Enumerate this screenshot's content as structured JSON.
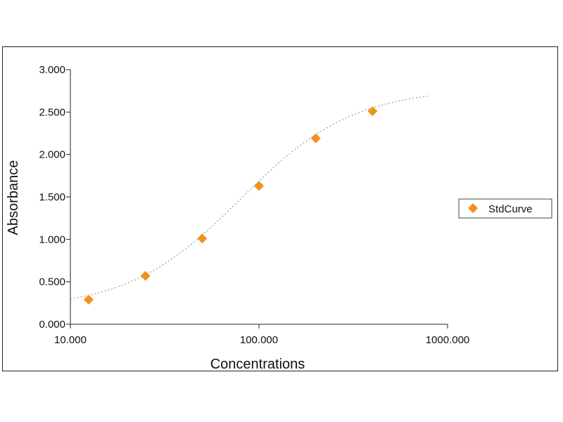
{
  "chart_data": {
    "type": "scatter",
    "xscale": "log",
    "xlabel": "Concentrations",
    "ylabel": "Absorbance",
    "xlim": [
      10,
      1000
    ],
    "ylim": [
      0,
      3
    ],
    "x_ticks": [
      {
        "value": 10,
        "label": "10.000"
      },
      {
        "value": 100,
        "label": "100.000"
      },
      {
        "value": 1000,
        "label": "1000.000"
      }
    ],
    "y_ticks": [
      {
        "value": 0,
        "label": "0.000"
      },
      {
        "value": 0.5,
        "label": "0.500"
      },
      {
        "value": 1,
        "label": "1.000"
      },
      {
        "value": 1.5,
        "label": "1.500"
      },
      {
        "value": 2,
        "label": "2.000"
      },
      {
        "value": 2.5,
        "label": "2.500"
      },
      {
        "value": 3,
        "label": "3.000"
      }
    ],
    "series": [
      {
        "name": "StdCurve",
        "color": "#f0921e",
        "marker": "diamond",
        "x": [
          12.5,
          25,
          50,
          100,
          200,
          400
        ],
        "y": [
          0.29,
          0.57,
          1.01,
          1.63,
          2.19,
          2.51
        ]
      }
    ],
    "fit_curve": {
      "style": "dotted",
      "color": "#9a9a9a",
      "x_range": [
        10,
        800
      ],
      "model": "4PL",
      "params": {
        "A": 0.175,
        "D": 2.78,
        "C": 80,
        "B": 1.45
      }
    },
    "legend": {
      "position": "right"
    },
    "grid": false
  }
}
